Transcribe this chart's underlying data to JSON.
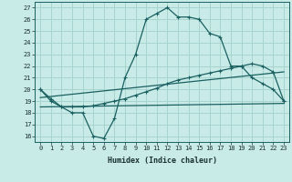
{
  "xlabel": "Humidex (Indice chaleur)",
  "background_color": "#c8ebe8",
  "grid_color": "#a8d4d0",
  "line_color": "#1a6060",
  "xlim": [
    -0.5,
    23.5
  ],
  "ylim": [
    15.5,
    27.5
  ],
  "xticks": [
    0,
    1,
    2,
    3,
    4,
    5,
    6,
    7,
    8,
    9,
    10,
    11,
    12,
    13,
    14,
    15,
    16,
    17,
    18,
    19,
    20,
    21,
    22,
    23
  ],
  "yticks": [
    16,
    17,
    18,
    19,
    20,
    21,
    22,
    23,
    24,
    25,
    26,
    27
  ],
  "curve1_x": [
    0,
    1,
    2,
    3,
    4,
    5,
    6,
    7,
    8,
    9,
    10,
    11,
    12,
    13,
    14,
    15,
    16,
    17,
    18,
    19,
    20,
    21,
    22,
    23
  ],
  "curve1_y": [
    20,
    19,
    18.5,
    18,
    18,
    16,
    15.8,
    17.5,
    21,
    23,
    26,
    26.5,
    27,
    26.2,
    26.2,
    26,
    24.8,
    24.5,
    22,
    22,
    21,
    20.5,
    20,
    19
  ],
  "curve2_x": [
    0,
    1,
    2,
    3,
    4,
    5,
    6,
    7,
    8,
    9,
    10,
    11,
    12,
    13,
    14,
    15,
    16,
    17,
    18,
    19,
    20,
    21,
    22,
    23
  ],
  "curve2_y": [
    20,
    19.2,
    18.5,
    18.5,
    18.5,
    18.6,
    18.8,
    19.0,
    19.2,
    19.5,
    19.8,
    20.1,
    20.5,
    20.8,
    21.0,
    21.2,
    21.4,
    21.6,
    21.8,
    22.0,
    22.2,
    22.0,
    21.5,
    19.0
  ],
  "line3_x": [
    0,
    23
  ],
  "line3_y": [
    18.5,
    18.8
  ],
  "line4_x": [
    0,
    23
  ],
  "line4_y": [
    19.3,
    21.5
  ]
}
